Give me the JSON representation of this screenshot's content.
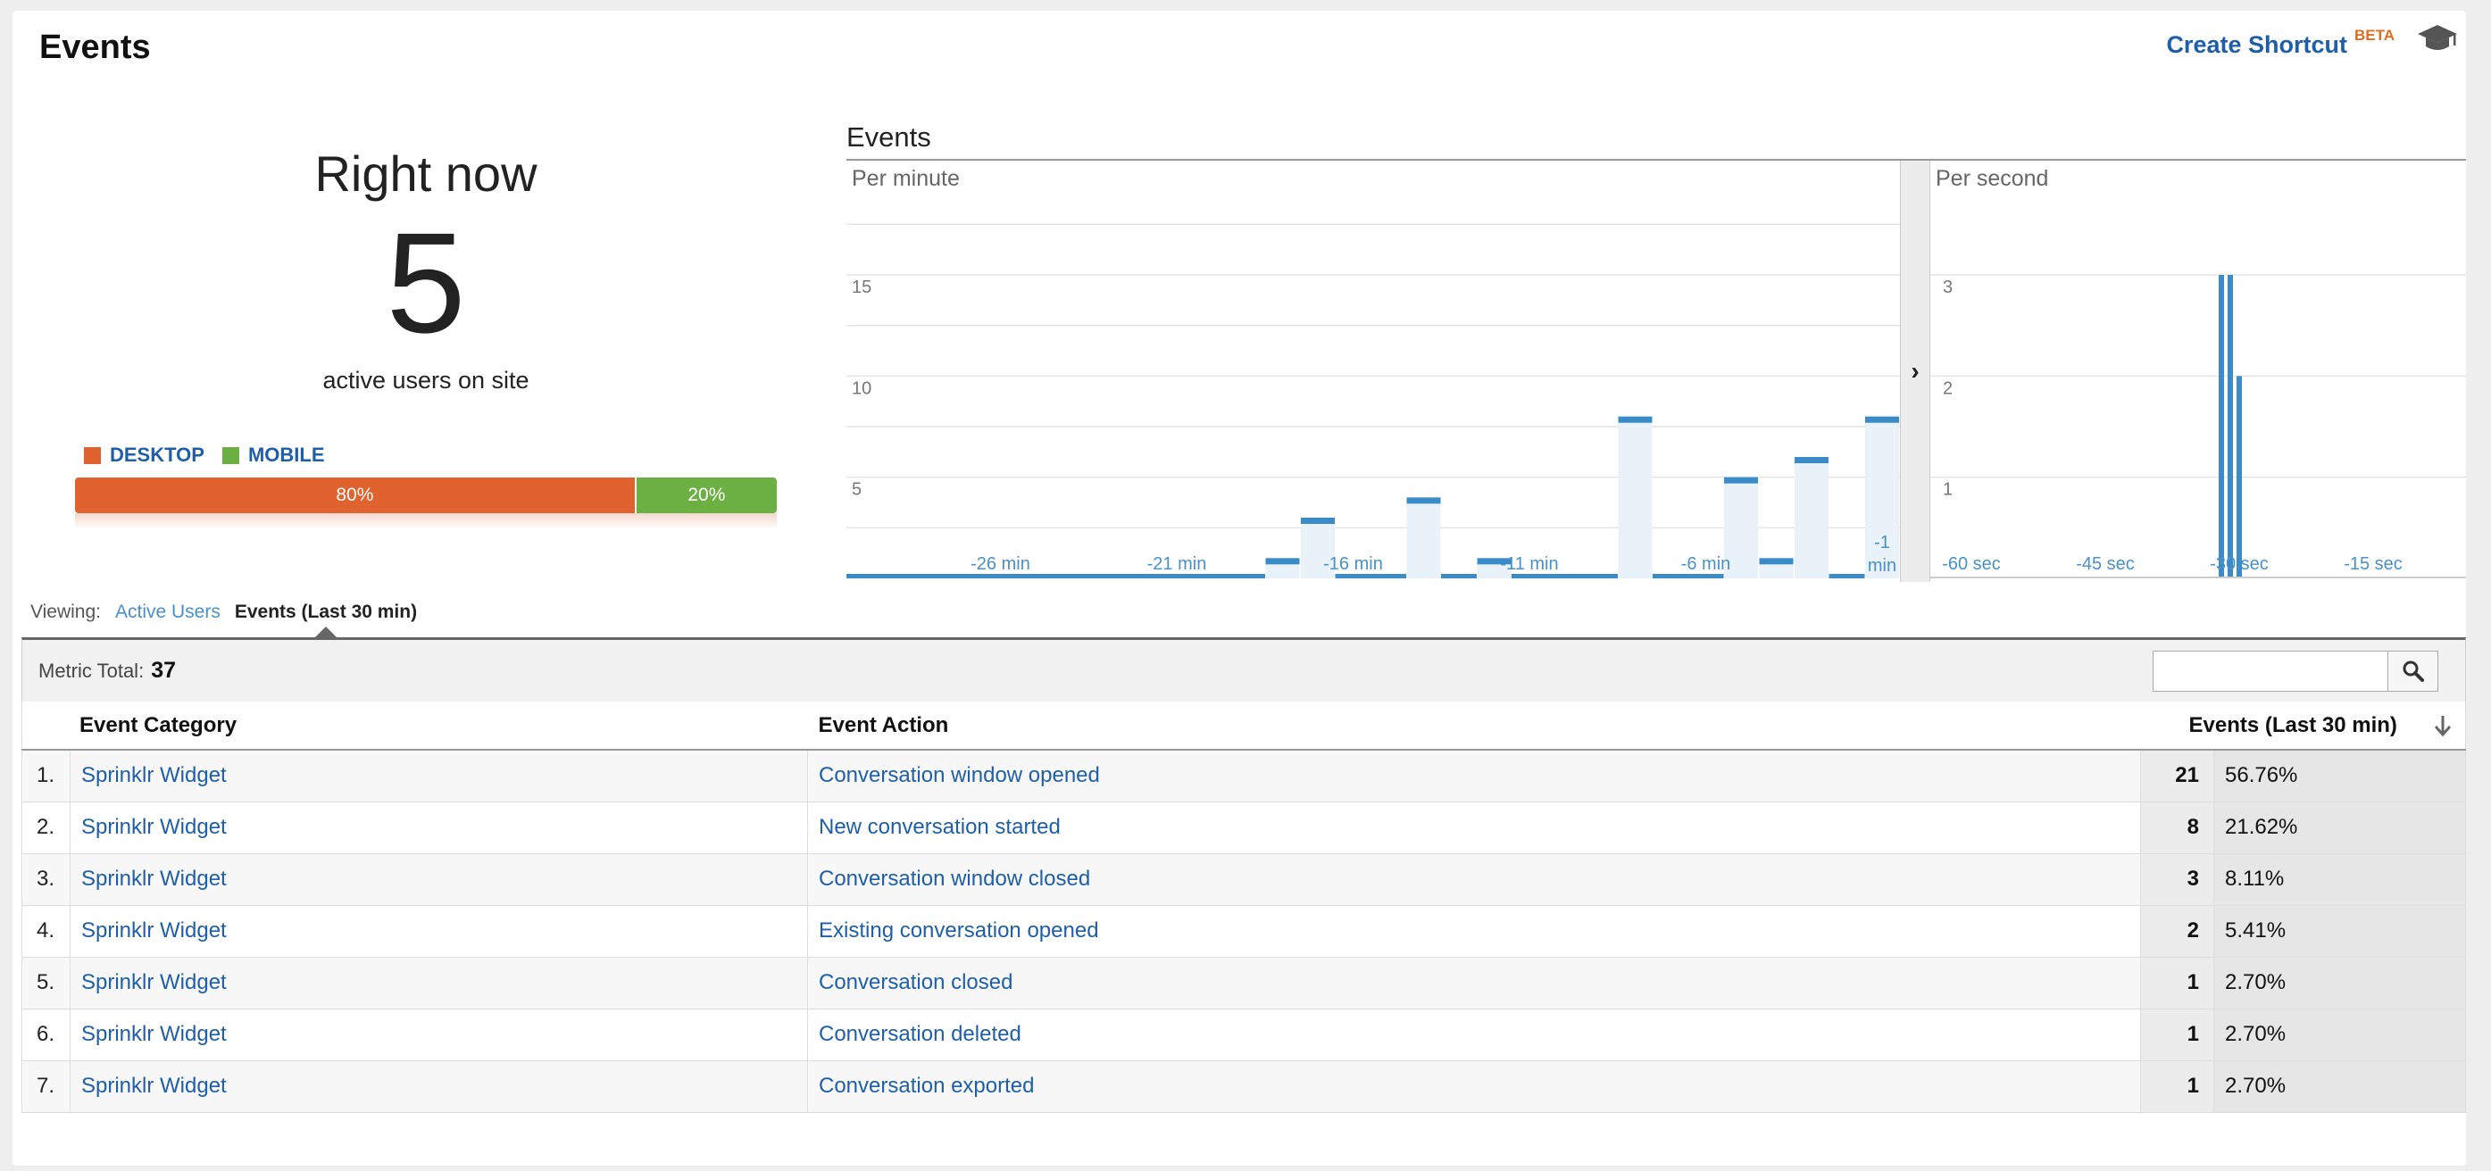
{
  "header": {
    "title": "Events",
    "shortcut_label": "Create Shortcut",
    "shortcut_badge": "BETA"
  },
  "right_now": {
    "label": "Right now",
    "count": "5",
    "subtitle": "active users on site"
  },
  "devices": {
    "legend": [
      {
        "name": "DESKTOP",
        "color": "#e0622e"
      },
      {
        "name": "MOBILE",
        "color": "#6cb043"
      }
    ],
    "desktop_pct": "80%",
    "mobile_pct": "20%",
    "desktop_share": 0.8
  },
  "events_chart": {
    "title": "Events",
    "per_minute_label": "Per minute",
    "per_second_label": "Per second"
  },
  "chart_data": [
    {
      "type": "bar",
      "title": "Per minute",
      "ylim": [
        0,
        18
      ],
      "yticks": [
        5,
        10,
        15
      ],
      "x_tick_labels": [
        {
          "label": "-26 min",
          "x": -26
        },
        {
          "label": "-21 min",
          "x": -21
        },
        {
          "label": "-16 min",
          "x": -16
        },
        {
          "label": "-11 min",
          "x": -11
        },
        {
          "label": "-6 min",
          "x": -6
        },
        {
          "label": "-1 min",
          "x": -1
        }
      ],
      "x": [
        -30,
        -29,
        -28,
        -27,
        -26,
        -25,
        -24,
        -23,
        -22,
        -21,
        -20,
        -19,
        -18,
        -17,
        -16,
        -15,
        -14,
        -13,
        -12,
        -11,
        -10,
        -9,
        -8,
        -7,
        -6,
        -5,
        -4,
        -3,
        -2,
        -1
      ],
      "values": [
        0,
        0,
        0,
        0,
        0,
        0,
        0,
        0,
        0,
        0,
        0,
        0,
        1,
        3,
        0,
        0,
        4,
        0,
        1,
        0,
        0,
        0,
        8,
        0,
        0,
        5,
        1,
        6,
        0,
        8
      ]
    },
    {
      "type": "bar",
      "title": "Per second",
      "ylim": [
        0,
        3.6
      ],
      "yticks": [
        1,
        2,
        3
      ],
      "x_tick_labels": [
        {
          "label": "-60 sec",
          "x": -60
        },
        {
          "label": "-45 sec",
          "x": -45
        },
        {
          "label": "-30 sec",
          "x": -30
        },
        {
          "label": "-15 sec",
          "x": -15
        }
      ],
      "x": [
        -32,
        -31,
        -30
      ],
      "values": [
        3,
        3,
        2
      ]
    }
  ],
  "viewing": {
    "label": "Viewing:",
    "tab_active_users": "Active Users",
    "tab_events": "Events (Last 30 min)"
  },
  "metric": {
    "label": "Metric Total:",
    "value": "37"
  },
  "table": {
    "columns": [
      "Event Category",
      "Event Action",
      "Events (Last 30 min)"
    ],
    "rows": [
      {
        "num": "1.",
        "category": "Sprinklr Widget",
        "action": "Conversation window opened",
        "count": "21",
        "pct": "56.76%"
      },
      {
        "num": "2.",
        "category": "Sprinklr Widget",
        "action": "New conversation started",
        "count": "8",
        "pct": "21.62%"
      },
      {
        "num": "3.",
        "category": "Sprinklr Widget",
        "action": "Conversation window closed",
        "count": "3",
        "pct": "8.11%"
      },
      {
        "num": "4.",
        "category": "Sprinklr Widget",
        "action": "Existing conversation opened",
        "count": "2",
        "pct": "5.41%"
      },
      {
        "num": "5.",
        "category": "Sprinklr Widget",
        "action": "Conversation closed",
        "count": "1",
        "pct": "2.70%"
      },
      {
        "num": "6.",
        "category": "Sprinklr Widget",
        "action": "Conversation deleted",
        "count": "1",
        "pct": "2.70%"
      },
      {
        "num": "7.",
        "category": "Sprinklr Widget",
        "action": "Conversation exported",
        "count": "1",
        "pct": "2.70%"
      }
    ]
  }
}
